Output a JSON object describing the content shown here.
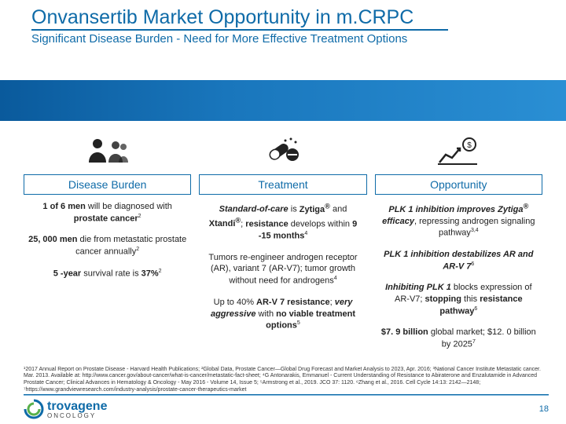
{
  "colors": {
    "brand": "#0f6ba8",
    "barGradientStart": "#0a5a9c",
    "barGradientEnd": "#2a8fd4",
    "text": "#222222",
    "footnote": "#333333"
  },
  "title": "Onvansertib Market Opportunity in m.CRPC",
  "subtitle": "Significant Disease Burden - Need for More Effective Treatment Options",
  "columns": [
    {
      "header": "Disease Burden",
      "icon": "people-icon",
      "blocks": [
        "<b>1 of 6 men</b> will be diagnosed with <b>prostate cancer</b><sup class='ref'>2</sup>",
        "<b>25, 000 men</b> die from metastatic prostate cancer annually<sup class='ref'>2</sup>",
        "<b>5 -year</b> survival rate is <b>37%</b><sup class='ref'>2</sup>"
      ]
    },
    {
      "header": "Treatment",
      "icon": "pills-icon",
      "blocks": [
        "<b><i>Standard-of-care</i></b> is <b>Zytiga<sup>®</sup></b> and <b>Xtandi<sup>®</sup></b>; <b>resistance</b> develops within <b>9 -15 months</b><sup class='ref'>4</sup>",
        "Tumors re-engineer androgen receptor (AR), variant 7 (AR-V7); tumor growth without need for androgens<sup class='ref'>4</sup>",
        "Up to 40% <b>AR-V 7 resistance</b>; <b><i>very aggressive</i></b> with <b>no viable treatment options</b><sup class='ref'>5</sup>"
      ]
    },
    {
      "header": "Opportunity",
      "icon": "dollar-icon",
      "blocks": [
        "<b><i>PLK 1 inhibition improves Zytiga<sup>®</sup> efficacy</i></b>, repressing androgen signaling pathway<sup class='ref'>3,4</sup>",
        "<b><i>PLK 1 inhibition destabilizes AR and AR-V 7</i></b><sup class='ref'>6</sup>",
        "<b><i>Inhibiting PLK 1</i></b> blocks expression of AR-V7; <b>stopping</b> this <b>resistance pathway</b><sup class='ref'>6</sup>",
        "<b>$7. 9 billion</b> global market; $12. 0 billion by 2025<sup class='ref'>7</sup>"
      ]
    }
  ],
  "footnote": "¹2017 Annual Report on Prostate Disease - Harvard Health Publications; ²Global Data, Prostate Cancer—Global Drug Forecast and Market Analysis to 2023, Apr. 2016; ³National Cancer Institute Metastatic cancer. Mar. 2013. Available at: http://www.cancer.gov/about-cancer/what-is-cancer/metastatic-fact-sheet; ⁴G Antonarakis, Emmanuel - Current Understanding of Resistance to Abiraterone and Enzalutamide in Advanced Prostate Cancer; Clinical Advances in Hematology & Oncology - May 2016 - Volume 14, Issue 5; ⁵Armstrong et al., 2019. JCO 37: 1120. ⁶Zhang et al., 2016. Cell Cycle 14:13: 2142—2148; ⁷https://www.grandviewresearch.com/industry-analysis/prostate-cancer-therapeutics-market",
  "logo": {
    "name": "trovagene",
    "tag": "ONCOLOGY"
  },
  "pageNumber": "18"
}
